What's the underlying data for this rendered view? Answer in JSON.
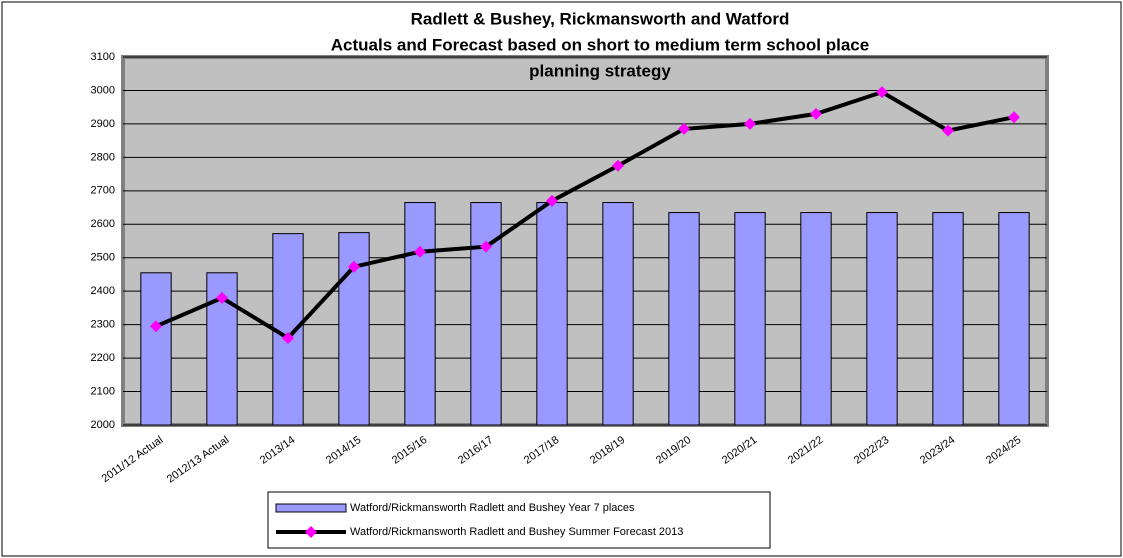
{
  "chart_data": {
    "type": "bar",
    "title": [
      "Radlett & Bushey, Rickmansworth and Watford",
      "Actuals and Forecast based on short to medium term school place",
      "planning strategy"
    ],
    "categories": [
      "2011/12 Actual",
      "2012/13 Actual",
      "2013/14",
      "2014/15",
      "2015/16",
      "2016/17",
      "2017/18",
      "2018/19",
      "2019/20",
      "2020/21",
      "2021/22",
      "2022/23",
      "2023/24",
      "2024/25"
    ],
    "series": [
      {
        "name": "Watford/Rickmansworth Radlett and Bushey Year 7 places",
        "type": "bar",
        "color": "#9999ff",
        "values": [
          2455,
          2455,
          2572,
          2575,
          2665,
          2665,
          2665,
          2665,
          2635,
          2635,
          2635,
          2635,
          2635,
          2635
        ]
      },
      {
        "name": "Watford/Rickmansworth Radlett and Bushey Summer Forecast 2013",
        "type": "line",
        "color": "#000000",
        "marker_color": "#ff00ff",
        "values": [
          2295,
          2380,
          2260,
          2473,
          2518,
          2533,
          2670,
          2775,
          2885,
          2900,
          2930,
          2995,
          2880,
          2920
        ]
      }
    ],
    "ylim": [
      2000,
      3100
    ],
    "yticks": [
      2000,
      2100,
      2200,
      2300,
      2400,
      2500,
      2600,
      2700,
      2800,
      2900,
      3000,
      3100
    ],
    "grid": true,
    "legend": "bottom"
  }
}
